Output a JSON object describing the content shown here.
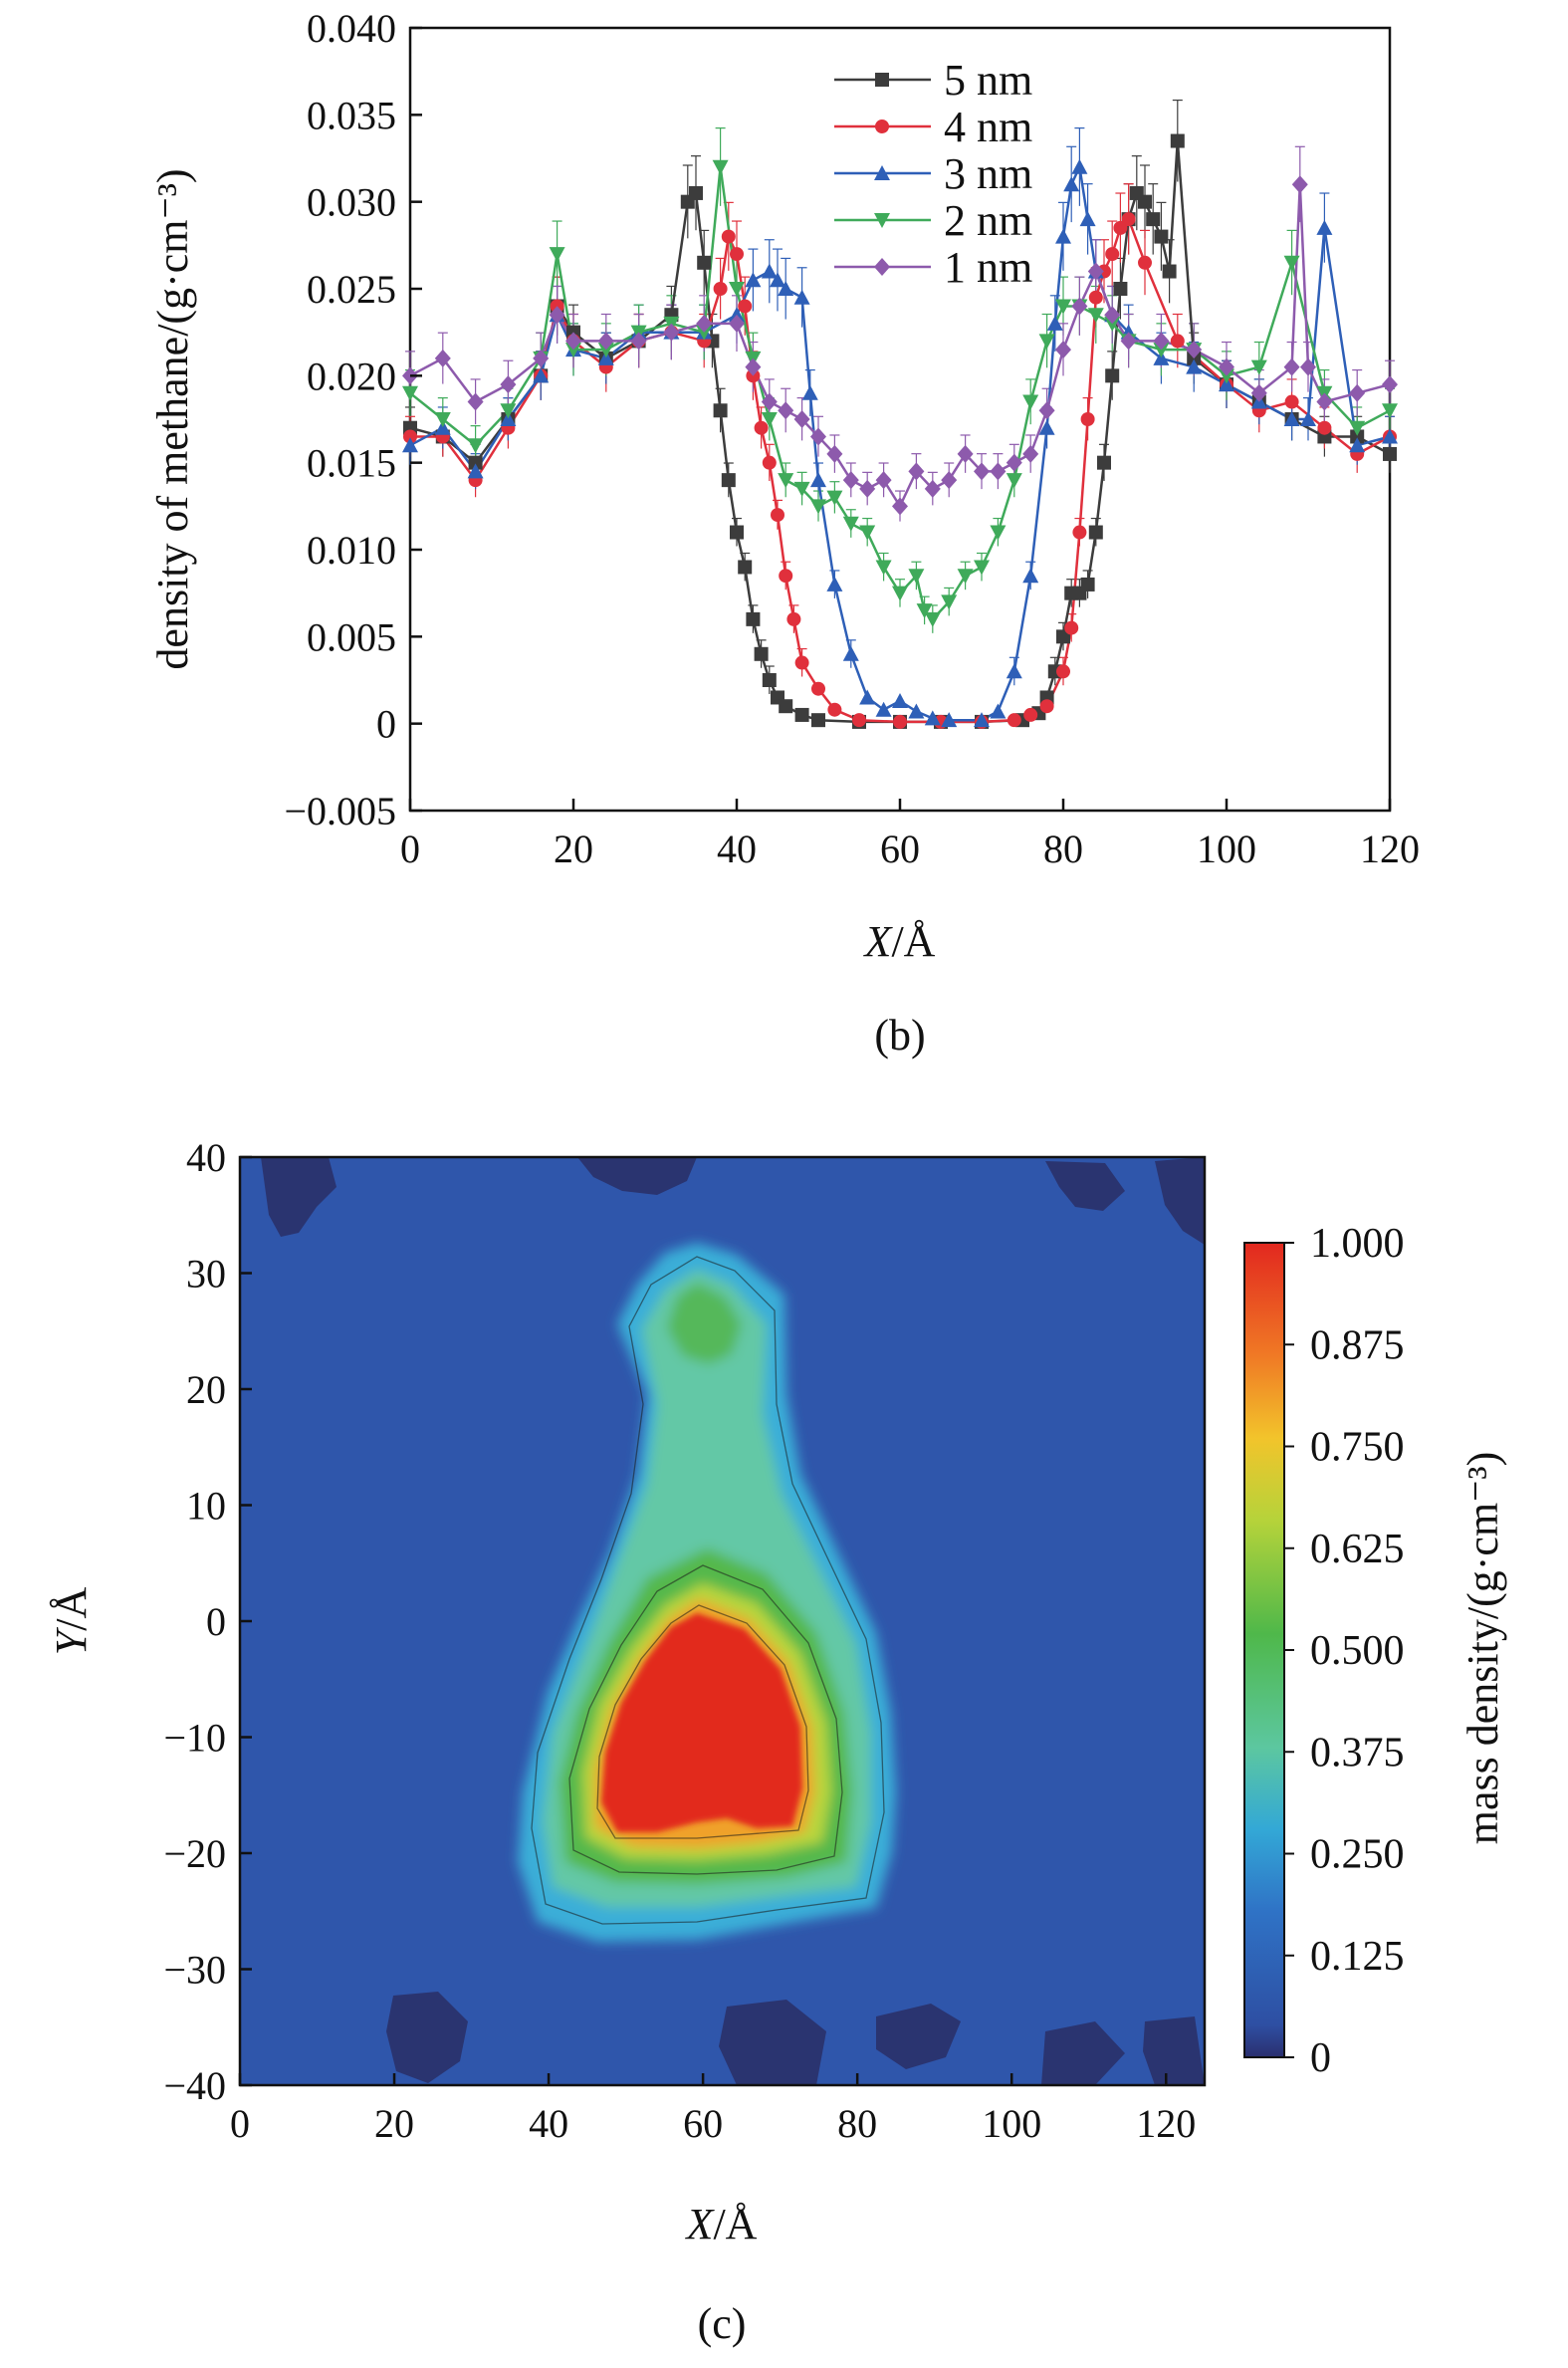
{
  "chart_data": [
    {
      "type": "line",
      "caption": "(b)",
      "xlabel": "X/Å",
      "ylabel": "density of methane/(g·cm⁻³)",
      "xlim": [
        0,
        120
      ],
      "ylim": [
        -0.005,
        0.04
      ],
      "xticks": [
        "0",
        "20",
        "40",
        "60",
        "80",
        "100",
        "120"
      ],
      "yticks": [
        "−0.005",
        "0",
        "0.005",
        "0.010",
        "0.015",
        "0.020",
        "0.025",
        "0.030",
        "0.035",
        "0.040"
      ],
      "legend_position": "top-right",
      "error_bars": true,
      "series": [
        {
          "name": "5 nm",
          "color": "#3c3c3c",
          "marker": "square",
          "x": [
            0,
            4,
            8,
            12,
            16,
            18,
            20,
            24,
            28,
            32,
            34,
            35,
            36,
            37,
            38,
            39,
            40,
            41,
            42,
            43,
            44,
            45,
            46,
            48,
            50,
            55,
            60,
            65,
            70,
            75,
            77,
            78,
            79,
            80,
            81,
            82,
            83,
            84,
            85,
            86,
            87,
            88,
            89,
            90,
            91,
            92,
            93,
            94,
            96,
            100,
            104,
            108,
            112,
            116,
            120
          ],
          "y": [
            0.017,
            0.0165,
            0.015,
            0.0175,
            0.02,
            0.024,
            0.0225,
            0.021,
            0.022,
            0.0235,
            0.03,
            0.0305,
            0.0265,
            0.022,
            0.018,
            0.014,
            0.011,
            0.009,
            0.006,
            0.004,
            0.0025,
            0.0015,
            0.001,
            0.0005,
            0.0002,
            0.0001,
            0.0001,
            0.0001,
            0.0001,
            0.0002,
            0.0006,
            0.0015,
            0.003,
            0.005,
            0.0075,
            0.0075,
            0.008,
            0.011,
            0.015,
            0.02,
            0.025,
            0.029,
            0.0305,
            0.03,
            0.029,
            0.028,
            0.026,
            0.0335,
            0.021,
            0.0195,
            0.0185,
            0.0175,
            0.0165,
            0.0165,
            0.0155
          ]
        },
        {
          "name": "4 nm",
          "color": "#e0303c",
          "marker": "circle",
          "x": [
            0,
            4,
            8,
            12,
            16,
            18,
            20,
            24,
            28,
            32,
            36,
            38,
            39,
            40,
            41,
            42,
            43,
            44,
            45,
            46,
            47,
            48,
            50,
            52,
            55,
            60,
            65,
            70,
            74,
            76,
            78,
            80,
            81,
            82,
            83,
            84,
            85,
            86,
            87,
            88,
            90,
            94,
            100,
            104,
            108,
            112,
            116,
            120
          ],
          "y": [
            0.0165,
            0.0165,
            0.014,
            0.017,
            0.02,
            0.024,
            0.022,
            0.0205,
            0.022,
            0.0225,
            0.022,
            0.025,
            0.028,
            0.027,
            0.024,
            0.02,
            0.017,
            0.015,
            0.012,
            0.0085,
            0.006,
            0.0035,
            0.002,
            0.0008,
            0.0002,
            0.0001,
            0.0001,
            0.0001,
            0.0002,
            0.0005,
            0.001,
            0.003,
            0.0055,
            0.011,
            0.0175,
            0.0245,
            0.026,
            0.027,
            0.0285,
            0.029,
            0.0265,
            0.022,
            0.0195,
            0.018,
            0.0185,
            0.017,
            0.0155,
            0.0165
          ]
        },
        {
          "name": "3 nm",
          "color": "#2e5fb7",
          "marker": "triangle",
          "x": [
            0,
            4,
            8,
            12,
            16,
            18,
            20,
            24,
            28,
            32,
            36,
            40,
            42,
            44,
            45,
            46,
            48,
            49,
            50,
            52,
            54,
            56,
            58,
            60,
            62,
            64,
            66,
            70,
            72,
            74,
            76,
            78,
            79,
            80,
            81,
            82,
            83,
            84,
            86,
            88,
            92,
            96,
            100,
            104,
            108,
            110,
            112,
            116,
            120
          ],
          "y": [
            0.016,
            0.017,
            0.0145,
            0.0175,
            0.02,
            0.0235,
            0.0215,
            0.021,
            0.0225,
            0.0225,
            0.0225,
            0.0235,
            0.0255,
            0.026,
            0.0255,
            0.025,
            0.0245,
            0.019,
            0.014,
            0.008,
            0.004,
            0.0015,
            0.0008,
            0.0013,
            0.0007,
            0.0003,
            0.0002,
            0.0002,
            0.0007,
            0.003,
            0.0085,
            0.017,
            0.023,
            0.028,
            0.031,
            0.032,
            0.029,
            0.026,
            0.0235,
            0.0225,
            0.021,
            0.0205,
            0.0195,
            0.0185,
            0.0175,
            0.0175,
            0.0285,
            0.016,
            0.0165
          ]
        },
        {
          "name": "2 nm",
          "color": "#3faa5a",
          "marker": "triangle-down",
          "x": [
            0,
            4,
            8,
            12,
            16,
            18,
            20,
            24,
            28,
            32,
            36,
            38,
            40,
            42,
            44,
            46,
            48,
            50,
            52,
            54,
            56,
            58,
            60,
            62,
            63,
            64,
            66,
            68,
            70,
            72,
            74,
            76,
            78,
            80,
            82,
            84,
            86,
            88,
            92,
            96,
            100,
            104,
            108,
            112,
            116,
            120
          ],
          "y": [
            0.019,
            0.0175,
            0.016,
            0.018,
            0.021,
            0.027,
            0.0215,
            0.0215,
            0.0225,
            0.023,
            0.0225,
            0.032,
            0.025,
            0.021,
            0.0175,
            0.014,
            0.0135,
            0.0125,
            0.013,
            0.0115,
            0.011,
            0.009,
            0.0075,
            0.0085,
            0.0065,
            0.006,
            0.007,
            0.0085,
            0.009,
            0.011,
            0.014,
            0.0185,
            0.022,
            0.024,
            0.024,
            0.0235,
            0.023,
            0.022,
            0.0215,
            0.0215,
            0.02,
            0.0205,
            0.0265,
            0.019,
            0.017,
            0.018
          ]
        },
        {
          "name": "1 nm",
          "color": "#8d5aac",
          "marker": "diamond",
          "x": [
            0,
            4,
            8,
            12,
            16,
            18,
            20,
            24,
            28,
            32,
            36,
            40,
            42,
            44,
            46,
            48,
            50,
            52,
            54,
            56,
            58,
            60,
            62,
            64,
            66,
            68,
            70,
            72,
            74,
            76,
            78,
            80,
            82,
            84,
            86,
            88,
            92,
            96,
            100,
            104,
            108,
            109,
            110,
            112,
            116,
            120
          ],
          "y": [
            0.02,
            0.021,
            0.0185,
            0.0195,
            0.021,
            0.0235,
            0.022,
            0.022,
            0.022,
            0.0225,
            0.023,
            0.023,
            0.0205,
            0.0185,
            0.018,
            0.0175,
            0.0165,
            0.0155,
            0.014,
            0.0135,
            0.014,
            0.0125,
            0.0145,
            0.0135,
            0.014,
            0.0155,
            0.0145,
            0.0145,
            0.015,
            0.0155,
            0.018,
            0.0215,
            0.024,
            0.026,
            0.0235,
            0.022,
            0.022,
            0.0215,
            0.0205,
            0.019,
            0.0205,
            0.031,
            0.0205,
            0.0185,
            0.019,
            0.0195
          ]
        }
      ]
    },
    {
      "type": "heatmap",
      "caption": "(c)",
      "xlabel": "X/Å",
      "ylabel": "Y/Å",
      "xlim": [
        0,
        125
      ],
      "ylim": [
        -40,
        40
      ],
      "xticks": [
        "0",
        "20",
        "40",
        "60",
        "80",
        "100",
        "120"
      ],
      "yticks": [
        "−40",
        "−30",
        "−20",
        "−10",
        "0",
        "10",
        "20",
        "30",
        "40"
      ],
      "colorbar": {
        "label": "mass density/(g·cm⁻³)",
        "range": [
          0,
          1.0
        ],
        "ticks": [
          "0",
          "0.125",
          "0.250",
          "0.375",
          "0.500",
          "0.625",
          "0.750",
          "0.875",
          "1.000"
        ],
        "colors": [
          "#2a2f6e",
          "#2e4fa3",
          "#2f73c6",
          "#33a8d6",
          "#5cc7a0",
          "#4fb84a",
          "#b6d33a",
          "#f2c42b",
          "#f07a25",
          "#e2281f"
        ]
      }
    }
  ]
}
